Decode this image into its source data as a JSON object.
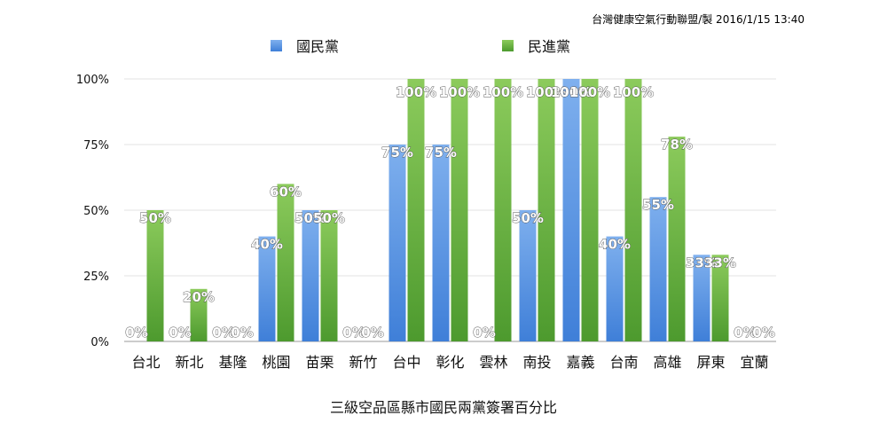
{
  "credit": "台灣健康空氣行動聯盟/製 2016/1/15 13:40",
  "caption": "三級空品區縣市國民兩黨簽署百分比",
  "colors": {
    "series_0_top": "#7fb0ee",
    "series_0_bottom": "#3f7fd8",
    "series_1_top": "#8ccb5c",
    "series_1_bottom": "#4d9a2e"
  },
  "chart_data": {
    "type": "bar",
    "categories": [
      "台北",
      "新北",
      "基隆",
      "桃園",
      "苗栗",
      "新竹",
      "台中",
      "彰化",
      "雲林",
      "南投",
      "嘉義",
      "台南",
      "高雄",
      "屏東",
      "宜蘭"
    ],
    "series": [
      {
        "name": "國民黨",
        "values": [
          0,
          0,
          0,
          40,
          50,
          0,
          75,
          75,
          0,
          50,
          100,
          40,
          55,
          33,
          0
        ]
      },
      {
        "name": "民進黨",
        "values": [
          50,
          20,
          0,
          60,
          50,
          0,
          100,
          100,
          100,
          100,
          100,
          100,
          78,
          33,
          0
        ]
      }
    ],
    "yticks": [
      "0%",
      "25%",
      "50%",
      "75%",
      "100%"
    ],
    "ylim": [
      0,
      100
    ],
    "grid": true,
    "legend_position": "top"
  }
}
